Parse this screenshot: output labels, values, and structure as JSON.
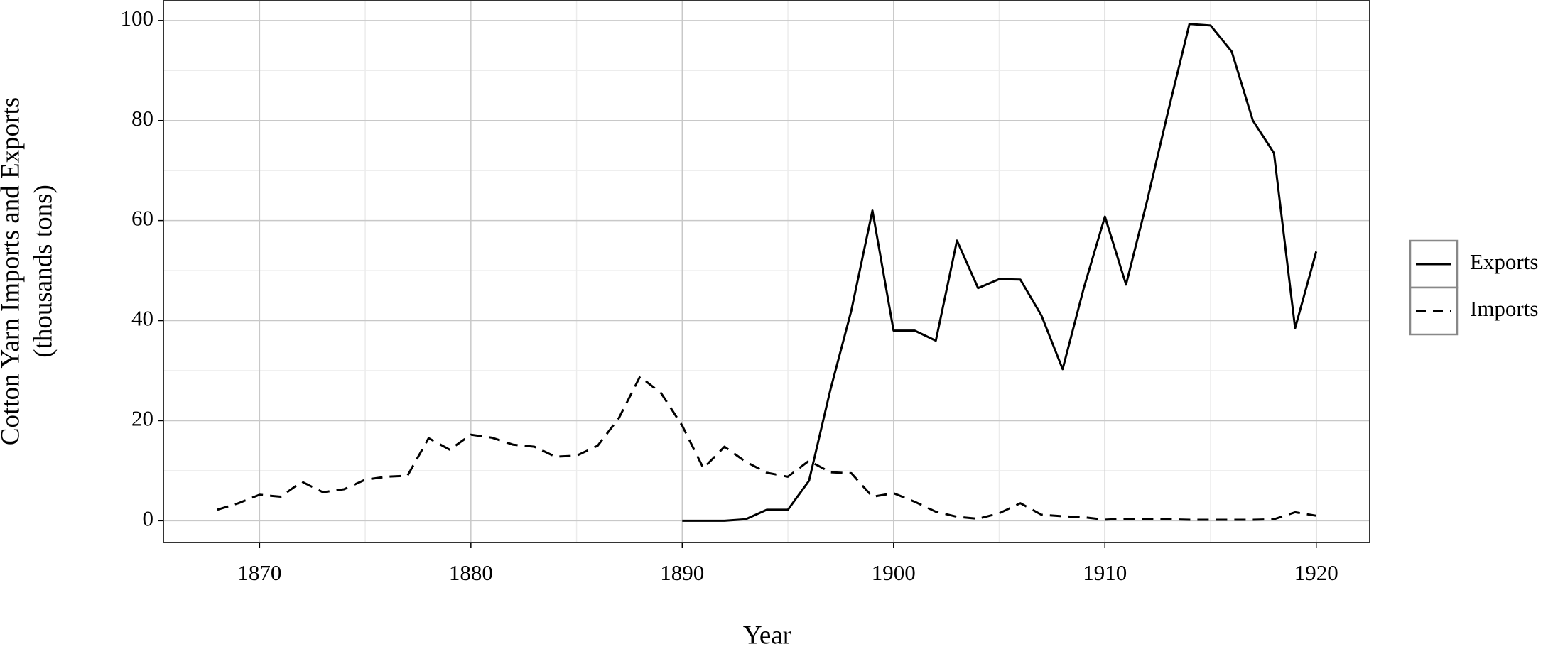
{
  "chart_data": {
    "type": "line",
    "x_label": "Year",
    "y_label": [
      "Cotton Yarn Imports and Exports",
      "(thousands tons)"
    ],
    "x": [
      1868,
      1869,
      1870,
      1871,
      1872,
      1873,
      1874,
      1875,
      1876,
      1877,
      1878,
      1879,
      1880,
      1881,
      1882,
      1883,
      1884,
      1885,
      1886,
      1887,
      1888,
      1889,
      1890,
      1891,
      1892,
      1893,
      1894,
      1895,
      1896,
      1897,
      1898,
      1899,
      1900,
      1901,
      1902,
      1903,
      1904,
      1905,
      1906,
      1907,
      1908,
      1909,
      1910,
      1911,
      1912,
      1913,
      1914,
      1915,
      1916,
      1917,
      1918,
      1919,
      1920
    ],
    "series": [
      {
        "name": "Exports",
        "color": "#000000",
        "dash": "solid",
        "values": [
          null,
          null,
          null,
          null,
          null,
          null,
          null,
          null,
          null,
          null,
          null,
          null,
          null,
          null,
          null,
          null,
          null,
          null,
          null,
          null,
          null,
          null,
          0,
          0,
          0,
          0.3,
          2.2,
          2.2,
          8,
          26,
          42,
          62,
          38,
          38,
          36,
          56,
          46.5,
          48.3,
          48.2,
          41,
          30.3,
          46.5,
          60.8,
          47.2,
          64,
          82,
          99.3,
          99,
          93.8,
          80,
          73.5,
          38.5,
          53.8
        ]
      },
      {
        "name": "Imports",
        "color": "#000000",
        "dash": "dashed",
        "values": [
          2.2,
          3.5,
          5.2,
          4.8,
          7.8,
          5.7,
          6.3,
          8.2,
          8.8,
          9,
          16.5,
          14.2,
          17.2,
          16.6,
          15.2,
          14.8,
          12.8,
          13,
          15,
          20.5,
          28.8,
          25.5,
          19,
          10.5,
          14.8,
          11.8,
          9.6,
          8.8,
          12,
          9.7,
          9.5,
          4.8,
          5.5,
          3.8,
          1.8,
          0.8,
          0.4,
          1.5,
          3.5,
          1.2,
          0.9,
          0.7,
          0.2,
          0.4,
          0.4,
          0.3,
          0.2,
          0.2,
          0.2,
          0.2,
          0.3,
          1.7,
          1
        ]
      }
    ],
    "xlim": [
      1865.45,
      1922.53
    ],
    "ylim": [
      -4.35,
      103.95
    ],
    "xticks": [
      1870,
      1880,
      1890,
      1900,
      1910,
      1920
    ],
    "yticks": [
      0,
      20,
      40,
      60,
      80,
      100
    ],
    "grid": true,
    "legend": "right"
  }
}
